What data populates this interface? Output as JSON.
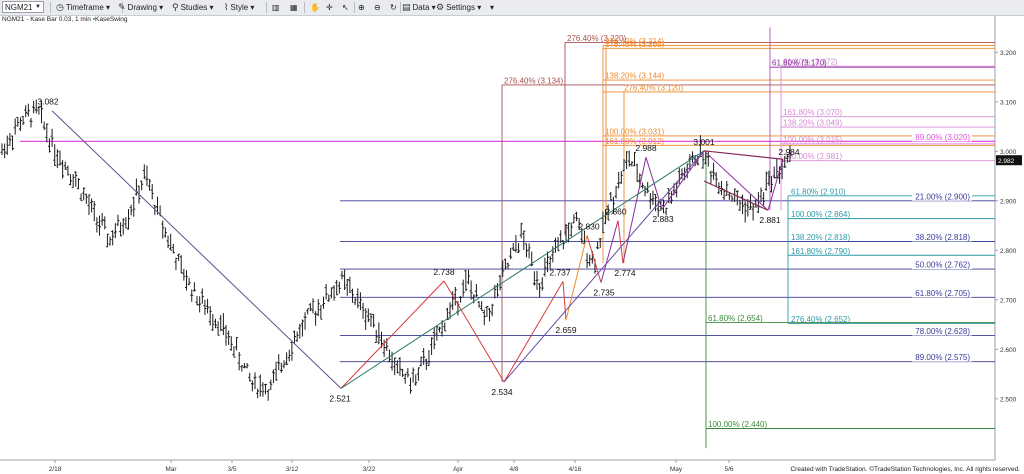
{
  "toolbar": {
    "symbol": "NGM21",
    "timeframe": "Timeframe",
    "drawing": "Drawing",
    "studies": "Studies",
    "style": "Style",
    "data": "Data",
    "settings": "Settings"
  },
  "subtitle": {
    "symbol": "NGM21",
    "bar": "Kase Bar 0.03, 1 min",
    "study": "KaseSwing"
  },
  "credit": "Created with TradeStation. ©TradeStation Technologies, Inc. All rights reserved.",
  "colors": {
    "red_wave": "#d83a3a",
    "blue_level": "#3a3a9a",
    "teal_level": "#2e9aa8",
    "orange_level": "#ee8a2a",
    "pink_level": "#d88ad6",
    "magenta_line": "#e04ee0",
    "green_level": "#3c8a3c",
    "brown_level": "#a85050",
    "price_bars": "#1a1a1a"
  },
  "chart_data": {
    "type": "line",
    "title": "",
    "ylim": [
      2.43,
      3.25
    ],
    "y_ticks": [
      "3.200",
      "3.100",
      "3.000",
      "2.900",
      "2.800",
      "2.700",
      "2.600",
      "2.500"
    ],
    "x_ticks": [
      "2/18",
      "Mar",
      "3/5",
      "3/12",
      "3/22",
      "Apr",
      "4/8",
      "4/16",
      "May",
      "5/6"
    ],
    "last_price": "2.982",
    "swing_labels": [
      {
        "text": "3.082",
        "value": 3.082
      },
      {
        "text": "2.521",
        "value": 2.521
      },
      {
        "text": "2.738",
        "value": 2.738
      },
      {
        "text": "2.534",
        "value": 2.534
      },
      {
        "text": "2.737",
        "value": 2.737
      },
      {
        "text": "2.659",
        "value": 2.659
      },
      {
        "text": "2.830",
        "value": 2.83
      },
      {
        "text": "2.735",
        "value": 2.735
      },
      {
        "text": "2.860",
        "value": 2.86
      },
      {
        "text": "2.774",
        "value": 2.774
      },
      {
        "text": "2.988",
        "value": 2.988
      },
      {
        "text": "2.883",
        "value": 2.883
      },
      {
        "text": "3.001",
        "value": 3.001
      },
      {
        "text": "2.881",
        "value": 2.881
      },
      {
        "text": "2.984",
        "value": 2.984
      }
    ],
    "levels": [
      {
        "text": "276.40% (3.220)",
        "value": 3.22,
        "color": "brown"
      },
      {
        "text": "276.40% (3.214)",
        "value": 3.214,
        "color": "orange"
      },
      {
        "text": "276.40% (3.208)",
        "value": 3.208,
        "color": "orange"
      },
      {
        "text": "61.80% (3.172)",
        "value": 3.172,
        "color": "pink"
      },
      {
        "text": "61.80% (3.170)",
        "value": 3.17,
        "color": "purple"
      },
      {
        "text": "138.20% (3.144)",
        "value": 3.144,
        "color": "orange"
      },
      {
        "text": "276.40% (3.134)",
        "value": 3.134,
        "color": "brown"
      },
      {
        "text": "276.40% (3.120)",
        "value": 3.12,
        "color": "orange"
      },
      {
        "text": "161.80% (3.070)",
        "value": 3.07,
        "color": "pink"
      },
      {
        "text": "138.20% (3.049)",
        "value": 3.049,
        "color": "pink"
      },
      {
        "text": "100.00% (3.031)",
        "value": 3.031,
        "color": "orange"
      },
      {
        "text": "89.00% (3.020)",
        "value": 3.02,
        "color": "magenta"
      },
      {
        "text": "100.00% (3.015)",
        "value": 3.015,
        "color": "pink"
      },
      {
        "text": "161.80% (3.012)",
        "value": 3.012,
        "color": "orange"
      },
      {
        "text": "100.00% (2.981)",
        "value": 2.981,
        "color": "pink"
      },
      {
        "text": "61.80% (2.910)",
        "value": 2.91,
        "color": "teal"
      },
      {
        "text": "21.00% (2.900)",
        "value": 2.9,
        "color": "blue"
      },
      {
        "text": "100.00% (2.864)",
        "value": 2.864,
        "color": "teal"
      },
      {
        "text": "138.20% (2.818)",
        "value": 2.818,
        "color": "teal"
      },
      {
        "text": "38.20% (2.818)",
        "value": 2.818,
        "color": "blue"
      },
      {
        "text": "161.80% (2.790)",
        "value": 2.79,
        "color": "teal"
      },
      {
        "text": "50.00% (2.762)",
        "value": 2.762,
        "color": "blue"
      },
      {
        "text": "61.80% (2.705)",
        "value": 2.705,
        "color": "blue"
      },
      {
        "text": "61.80% (2.654)",
        "value": 2.654,
        "color": "green"
      },
      {
        "text": "276.40% (2.652)",
        "value": 2.652,
        "color": "teal"
      },
      {
        "text": "78.00% (2.628)",
        "value": 2.628,
        "color": "blue"
      },
      {
        "text": "89.00% (2.575)",
        "value": 2.575,
        "color": "blue"
      },
      {
        "text": "100.00% (2.440)",
        "value": 2.44,
        "color": "green"
      }
    ],
    "swing_path": [
      3.082,
      2.521,
      2.738,
      2.534,
      2.737,
      2.659,
      2.83,
      2.735,
      2.86,
      2.774,
      2.988,
      2.883,
      3.001,
      2.881,
      2.984
    ],
    "price_series_path": [
      3.0,
      3.06,
      3.082,
      3.0,
      2.95,
      2.88,
      2.82,
      2.87,
      2.95,
      2.85,
      2.76,
      2.7,
      2.66,
      2.6,
      2.53,
      2.521,
      2.6,
      2.66,
      2.7,
      2.738,
      2.69,
      2.64,
      2.56,
      2.534,
      2.6,
      2.68,
      2.737,
      2.659,
      2.75,
      2.83,
      2.735,
      2.8,
      2.86,
      2.774,
      2.9,
      2.988,
      2.92,
      2.883,
      2.95,
      3.001,
      2.94,
      2.9,
      2.881,
      2.95,
      2.984
    ]
  }
}
